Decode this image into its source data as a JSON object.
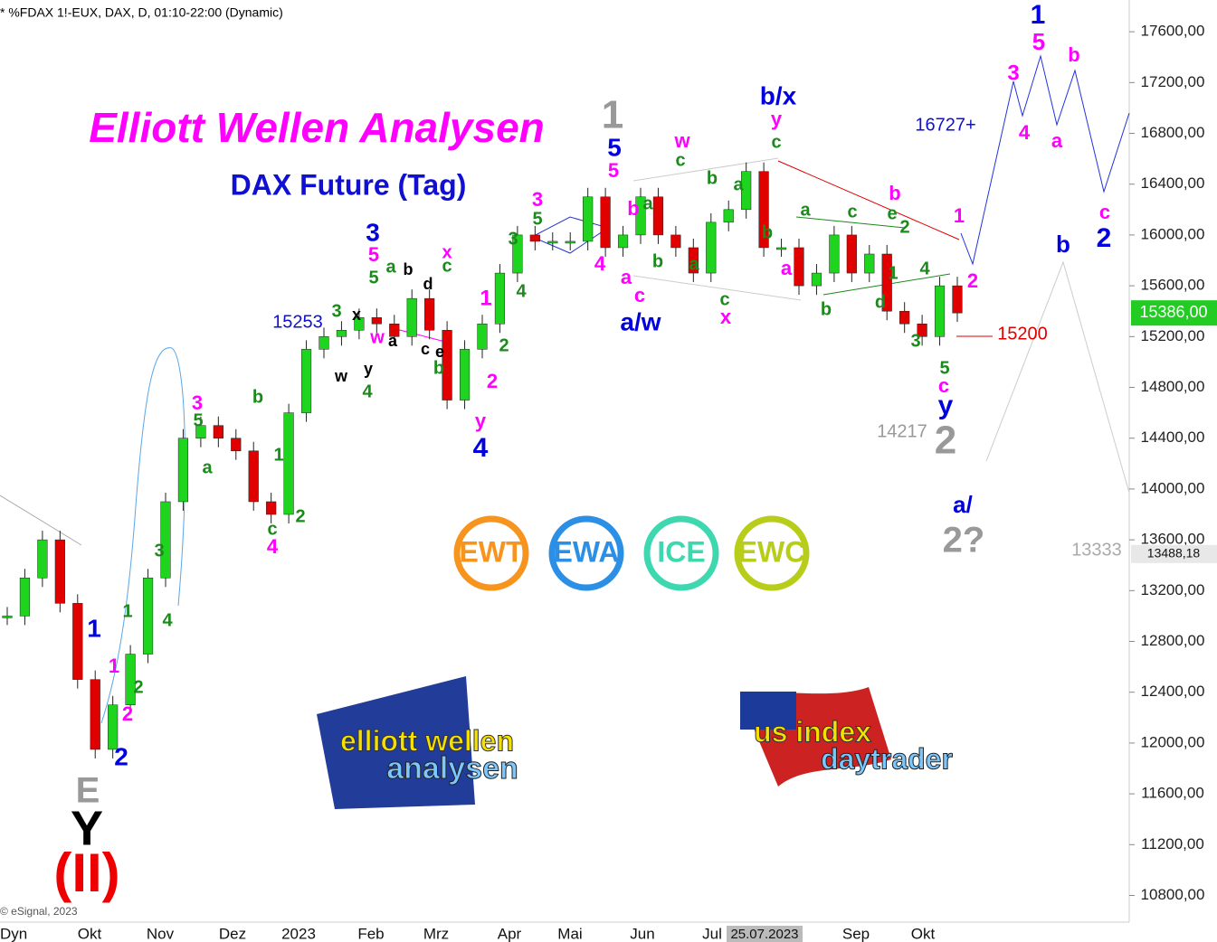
{
  "chart_data": {
    "type": "candlestick",
    "header": "* %FDAX 1!-EUX, DAX, D, 01:10-22:00 (Dynamic)",
    "title": "Elliott Wellen Analysen",
    "subtitle": "DAX Future (Tag)",
    "copyright": "© eSignal, 2023",
    "values": [
      13000,
      13300,
      13600,
      13100,
      12500,
      11950,
      12300,
      12700,
      13300,
      13900,
      14400,
      14500,
      14400,
      14300,
      13900,
      13800,
      14600,
      15100,
      15200,
      15250,
      15350,
      15300,
      15200,
      15500,
      15250,
      14700,
      15100,
      15300,
      15700,
      16000,
      15950,
      15950,
      15950,
      16300,
      15900,
      16000,
      16300,
      16000,
      15900,
      15700,
      16100,
      16200,
      16500,
      15900,
      15900,
      15600,
      15700,
      16000,
      15700,
      15850,
      15400,
      15300,
      15200,
      15600,
      15386
    ],
    "up_color": "#1ed41e",
    "down_color": "#e00000",
    "ylim": [
      10590,
      17850
    ],
    "yticks": [
      {
        "value": 17600,
        "label": "17600,00"
      },
      {
        "value": 17200,
        "label": "17200,00"
      },
      {
        "value": 16800,
        "label": "16800,00"
      },
      {
        "value": 16400,
        "label": "16400,00"
      },
      {
        "value": 16000,
        "label": "16000,00"
      },
      {
        "value": 15600,
        "label": "15600,00"
      },
      {
        "value": 15200,
        "label": "15200,00"
      },
      {
        "value": 14800,
        "label": "14800,00"
      },
      {
        "value": 14400,
        "label": "14400,00"
      },
      {
        "value": 14000,
        "label": "14000,00"
      },
      {
        "value": 13600,
        "label": "13600,00"
      },
      {
        "value": 13200,
        "label": "13200,00"
      },
      {
        "value": 12800,
        "label": "12800,00"
      },
      {
        "value": 12400,
        "label": "12400,00"
      },
      {
        "value": 12000,
        "label": "12000,00"
      },
      {
        "value": 11600,
        "label": "11600,00"
      },
      {
        "value": 11200,
        "label": "11200,00"
      },
      {
        "value": 10800,
        "label": "10800,00"
      }
    ],
    "price_markers": [
      {
        "value": 15386,
        "label": "15386,00",
        "color": "#22cc22"
      },
      {
        "value": 13488.18,
        "label": "13488,18",
        "color": "#e8e8e8"
      }
    ],
    "x_labels": [
      "Dyn",
      "Okt",
      "Nov",
      "Dez",
      "2023",
      "Feb",
      "Mrz",
      "Apr",
      "Mai",
      "Jun",
      "Jul",
      "25.07.2023",
      "Sep",
      "Okt"
    ],
    "price_notes": [
      {
        "text": "15253",
        "color": "#1010d0"
      },
      {
        "text": "16727+",
        "color": "#1010d0"
      },
      {
        "text": "15200",
        "color": "#e00000"
      },
      {
        "text": "14217",
        "color": "#999999"
      },
      {
        "text": "13333",
        "color": "#aaaaaa"
      }
    ],
    "badges": [
      {
        "text": "EWT",
        "color": "#f7941d"
      },
      {
        "text": "EWA",
        "color": "#2b8fe6"
      },
      {
        "text": "ICE",
        "color": "#3ed8b0"
      },
      {
        "text": "EWC",
        "color": "#b8cc1a"
      }
    ],
    "logos": [
      {
        "top": "elliott wellen",
        "bottom": "analysen"
      },
      {
        "top": "us index",
        "bottom": "daytrader"
      }
    ],
    "wave_labels": [
      {
        "text": "1",
        "color": "#0000e0"
      },
      {
        "text": "5",
        "color": "#ff00ff"
      },
      {
        "text": "3",
        "color": "#ff00ff"
      },
      {
        "text": "b",
        "color": "#ff00ff"
      },
      {
        "text": "4",
        "color": "#ff00ff"
      },
      {
        "text": "a",
        "color": "#ff00ff"
      },
      {
        "text": "c",
        "color": "#ff00ff"
      },
      {
        "text": "2",
        "color": "#0000e0"
      },
      {
        "text": "b",
        "color": "#0000e0"
      },
      {
        "text": "1",
        "color": "#ff00ff"
      },
      {
        "text": "2",
        "color": "#ff00ff"
      },
      {
        "text": "a/",
        "color": "#0000e0"
      },
      {
        "text": "2?",
        "color": "#999999"
      },
      {
        "text": "2",
        "color": "#999999"
      },
      {
        "text": "y",
        "color": "#0000e0"
      },
      {
        "text": "c",
        "color": "#ff00ff"
      },
      {
        "text": "5",
        "color": "#1a8a1a"
      },
      {
        "text": "3",
        "color": "#1a8a1a"
      },
      {
        "text": "4",
        "color": "#1a8a1a"
      },
      {
        "text": "1",
        "color": "#1a8a1a"
      },
      {
        "text": "2",
        "color": "#1a8a1a"
      },
      {
        "text": "e",
        "color": "#1a8a1a"
      },
      {
        "text": "b",
        "color": "#ff00ff"
      },
      {
        "text": "d",
        "color": "#1a8a1a"
      },
      {
        "text": "c",
        "color": "#1a8a1a"
      },
      {
        "text": "a",
        "color": "#1a8a1a"
      },
      {
        "text": "b",
        "color": "#1a8a1a"
      },
      {
        "text": "a",
        "color": "#ff00ff"
      },
      {
        "text": "b",
        "color": "#1a8a1a"
      },
      {
        "text": "c",
        "color": "#1a8a1a"
      },
      {
        "text": "y",
        "color": "#ff00ff"
      },
      {
        "text": "b/x",
        "color": "#0000e0"
      },
      {
        "text": "a",
        "color": "#1a8a1a"
      },
      {
        "text": "b",
        "color": "#1a8a1a"
      },
      {
        "text": "c",
        "color": "#1a8a1a"
      },
      {
        "text": "w",
        "color": "#ff00ff"
      },
      {
        "text": "a",
        "color": "#1a8a1a"
      },
      {
        "text": "b",
        "color": "#1a8a1a"
      },
      {
        "text": "a",
        "color": "#1a8a1a"
      },
      {
        "text": "c",
        "color": "#1a8a1a"
      },
      {
        "text": "x",
        "color": "#ff00ff"
      },
      {
        "text": "c",
        "color": "#ff00ff"
      },
      {
        "text": "a",
        "color": "#ff00ff"
      },
      {
        "text": "b",
        "color": "#ff00ff"
      },
      {
        "text": "a/w",
        "color": "#0000e0"
      },
      {
        "text": "1",
        "color": "#999999"
      },
      {
        "text": "5",
        "color": "#0000e0"
      },
      {
        "text": "5",
        "color": "#ff00ff"
      },
      {
        "text": "4",
        "color": "#ff00ff"
      },
      {
        "text": "5",
        "color": "#1a8a1a"
      },
      {
        "text": "3",
        "color": "#ff00ff"
      },
      {
        "text": "3",
        "color": "#1a8a1a"
      },
      {
        "text": "4",
        "color": "#1a8a1a"
      },
      {
        "text": "1",
        "color": "#ff00ff"
      },
      {
        "text": "2",
        "color": "#1a8a1a"
      },
      {
        "text": "2",
        "color": "#ff00ff"
      },
      {
        "text": "y",
        "color": "#ff00ff"
      },
      {
        "text": "4",
        "color": "#0000e0"
      },
      {
        "text": "x",
        "color": "#ff00ff"
      },
      {
        "text": "c",
        "color": "#1a8a1a"
      },
      {
        "text": "3",
        "color": "#0000e0"
      },
      {
        "text": "5",
        "color": "#ff00ff"
      },
      {
        "text": "5",
        "color": "#1a8a1a"
      },
      {
        "text": "a",
        "color": "#1a8a1a"
      },
      {
        "text": "b",
        "color": "#000000"
      },
      {
        "text": "d",
        "color": "#000000"
      },
      {
        "text": "w",
        "color": "#ff00ff"
      },
      {
        "text": "a",
        "color": "#000000"
      },
      {
        "text": "c",
        "color": "#000000"
      },
      {
        "text": "e",
        "color": "#000000"
      },
      {
        "text": "b",
        "color": "#1a8a1a"
      },
      {
        "text": "3",
        "color": "#1a8a1a"
      },
      {
        "text": "x",
        "color": "#000000"
      },
      {
        "text": "w",
        "color": "#000000"
      },
      {
        "text": "y",
        "color": "#000000"
      },
      {
        "text": "4",
        "color": "#1a8a1a"
      },
      {
        "text": "3",
        "color": "#ff00ff"
      },
      {
        "text": "5",
        "color": "#1a8a1a"
      },
      {
        "text": "a",
        "color": "#1a8a1a"
      },
      {
        "text": "b",
        "color": "#1a8a1a"
      },
      {
        "text": "1",
        "color": "#1a8a1a"
      },
      {
        "text": "c",
        "color": "#1a8a1a"
      },
      {
        "text": "4",
        "color": "#ff00ff"
      },
      {
        "text": "2",
        "color": "#1a8a1a"
      },
      {
        "text": "3",
        "color": "#1a8a1a"
      },
      {
        "text": "4",
        "color": "#1a8a1a"
      },
      {
        "text": "1",
        "color": "#1a8a1a"
      },
      {
        "text": "2",
        "color": "#1a8a1a"
      },
      {
        "text": "1",
        "color": "#0000e0"
      },
      {
        "text": "1",
        "color": "#ff00ff"
      },
      {
        "text": "2",
        "color": "#ff00ff"
      },
      {
        "text": "2",
        "color": "#0000e0"
      },
      {
        "text": "E",
        "color": "#999999"
      },
      {
        "text": "Y",
        "color": "#000000"
      },
      {
        "text": "(II)",
        "color": "#ee0000"
      }
    ]
  }
}
